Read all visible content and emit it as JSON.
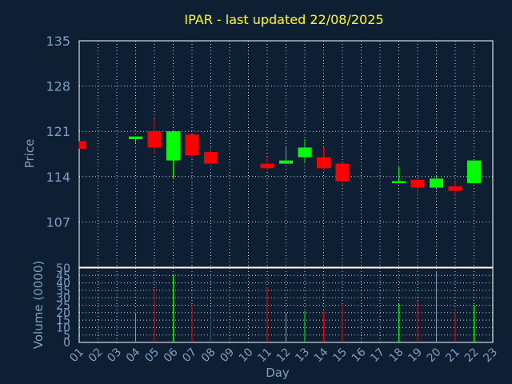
{
  "chart_data": {
    "type": "candlestick",
    "title": "IPAR - last updated 22/08/2025",
    "ylabel": "Price",
    "volume_label": "Volume (0000)",
    "xlabel": "Day",
    "ylim": [
      100,
      135
    ],
    "y_ticks": [
      135,
      128,
      121,
      114,
      107
    ],
    "volume_ylim": [
      0,
      50
    ],
    "volume_ticks": [
      50,
      45,
      40,
      35,
      30,
      25,
      20,
      15,
      10,
      5,
      0
    ],
    "days": [
      "01",
      "02",
      "03",
      "04",
      "05",
      "06",
      "07",
      "08",
      "09",
      "10",
      "11",
      "12",
      "13",
      "14",
      "15",
      "16",
      "17",
      "18",
      "19",
      "20",
      "21",
      "22",
      "23"
    ],
    "candles": [
      {
        "day": "01",
        "open": 119.5,
        "close": 118.3,
        "high": 119.5,
        "low": 118.3
      },
      {
        "day": "04",
        "open": 119.8,
        "close": 120.2,
        "high": 120.2,
        "low": 119.2
      },
      {
        "day": "05",
        "open": 121.0,
        "close": 118.5,
        "high": 123.0,
        "low": 117.5
      },
      {
        "day": "06",
        "open": 116.5,
        "close": 121.0,
        "high": 121.0,
        "low": 113.8
      },
      {
        "day": "07",
        "open": 120.5,
        "close": 117.3,
        "high": 120.5,
        "low": 116.8
      },
      {
        "day": "08",
        "open": 117.8,
        "close": 116.0,
        "high": 118.5,
        "low": 116.0
      },
      {
        "day": "11",
        "open": 116.0,
        "close": 115.3,
        "high": 117.0,
        "low": 115.0
      },
      {
        "day": "12",
        "open": 116.0,
        "close": 116.5,
        "high": 118.5,
        "low": 116.0
      },
      {
        "day": "13",
        "open": 117.0,
        "close": 118.5,
        "high": 119.8,
        "low": 116.3
      },
      {
        "day": "14",
        "open": 117.0,
        "close": 115.3,
        "high": 118.5,
        "low": 115.0
      },
      {
        "day": "15",
        "open": 116.0,
        "close": 113.3,
        "high": 116.0,
        "low": 112.8
      },
      {
        "day": "18",
        "open": 113.0,
        "close": 113.3,
        "high": 115.5,
        "low": 113.0
      },
      {
        "day": "19",
        "open": 113.5,
        "close": 112.3,
        "high": 113.5,
        "low": 111.5
      },
      {
        "day": "20",
        "open": 112.3,
        "close": 113.7,
        "high": 114.2,
        "low": 112.0
      },
      {
        "day": "21",
        "open": 112.5,
        "close": 111.8,
        "high": 113.0,
        "low": 111.0
      },
      {
        "day": "22",
        "open": 113.0,
        "close": 116.5,
        "high": 116.5,
        "low": 113.0
      }
    ],
    "volume": [
      {
        "day": "04",
        "value": 20
      },
      {
        "day": "05",
        "value": 36
      },
      {
        "day": "06",
        "value": 45
      },
      {
        "day": "07",
        "value": 25
      },
      {
        "day": "08",
        "value": 18
      },
      {
        "day": "11",
        "value": 37
      },
      {
        "day": "12",
        "value": 20
      },
      {
        "day": "13",
        "value": 21
      },
      {
        "day": "14",
        "value": 20
      },
      {
        "day": "15",
        "value": 25
      },
      {
        "day": "18",
        "value": 26
      },
      {
        "day": "19",
        "value": 28
      },
      {
        "day": "20",
        "value": 48
      },
      {
        "day": "21",
        "value": 20
      },
      {
        "day": "22",
        "value": 25
      }
    ],
    "colors": {
      "up": "#00ff00",
      "down": "#ff0000",
      "title": "#ffff00",
      "axis_text": "#7f9fbf",
      "grid": "#d0d0d0",
      "background": "#0f1f33"
    }
  }
}
